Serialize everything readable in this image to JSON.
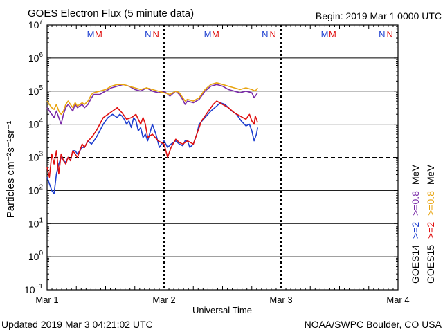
{
  "chart_data": {
    "type": "line",
    "title": "GOES Electron Flux (5 minute data)",
    "begin_label": "Begin: 2019 Mar 1 0000 UTC",
    "xlabel": "Universal Time",
    "ylabel": "Particles cm⁻²s⁻¹sr⁻¹",
    "footer_left": "Updated 2019 Mar  3 04:21:02 UTC",
    "footer_right": "NOAA/SWPC Boulder, CO USA",
    "x_unit": "days since 2019 Mar 1 0000 UTC",
    "x_range": [
      0,
      3
    ],
    "x_ticks": [
      {
        "value": 0,
        "label": "Mar 1"
      },
      {
        "value": 1,
        "label": "Mar 2"
      },
      {
        "value": 2,
        "label": "Mar 3"
      },
      {
        "value": 3,
        "label": "Mar 4"
      }
    ],
    "y_scale": "log",
    "y_range_exp": [
      -1,
      7
    ],
    "y_tick_exps": [
      -1,
      0,
      1,
      2,
      3,
      4,
      5,
      6,
      7
    ],
    "y_tick_base": "10",
    "threshold_exp": 3,
    "markers": {
      "day_offsets": [
        0.3,
        0.73
      ],
      "labels": [
        {
          "text": "M",
          "color": "#1e3fd0",
          "offset": 0.373
        },
        {
          "text": "M",
          "color": "#e01010",
          "offset": 0.44
        },
        {
          "text": "N",
          "color": "#1e3fd0",
          "offset": 0.863
        },
        {
          "text": "N",
          "color": "#e01010",
          "offset": 0.93
        }
      ]
    },
    "legend": [
      {
        "text": "GOES14",
        "color": "#000000"
      },
      {
        "text": ">=2",
        "color": "#1e3fd0"
      },
      {
        "text": ">=0.8",
        "color": "#7a2aa8"
      },
      {
        "text": "MeV",
        "color": "#000000"
      },
      {
        "text": "GOES15",
        "color": "#000000"
      },
      {
        "text": ">=2",
        "color": "#e01010"
      },
      {
        "text": ">=0.8",
        "color": "#e8a410"
      },
      {
        "text": "MeV",
        "color": "#000000"
      }
    ],
    "series": [
      {
        "name": "GOES14 >=2 MeV",
        "color": "#1e3fd0",
        "points": [
          [
            0.0,
            2.4
          ],
          [
            0.02,
            2.2
          ],
          [
            0.04,
            2.0
          ],
          [
            0.06,
            1.9
          ],
          [
            0.08,
            2.5
          ],
          [
            0.1,
            2.8
          ],
          [
            0.12,
            3.0
          ],
          [
            0.14,
            2.9
          ],
          [
            0.16,
            2.85
          ],
          [
            0.18,
            3.0
          ],
          [
            0.2,
            2.9
          ],
          [
            0.22,
            3.2
          ],
          [
            0.24,
            3.2
          ],
          [
            0.26,
            3.1
          ],
          [
            0.28,
            3.2
          ],
          [
            0.3,
            3.3
          ],
          [
            0.32,
            3.3
          ],
          [
            0.35,
            3.5
          ],
          [
            0.38,
            3.4
          ],
          [
            0.4,
            3.5
          ],
          [
            0.42,
            3.6
          ],
          [
            0.45,
            3.8
          ],
          [
            0.48,
            4.0
          ],
          [
            0.52,
            4.2
          ],
          [
            0.56,
            4.3
          ],
          [
            0.6,
            4.2
          ],
          [
            0.62,
            4.3
          ],
          [
            0.64,
            4.25
          ],
          [
            0.66,
            4.15
          ],
          [
            0.68,
            4.0
          ],
          [
            0.7,
            4.1
          ],
          [
            0.72,
            3.9
          ],
          [
            0.74,
            4.2
          ],
          [
            0.76,
            4.1
          ],
          [
            0.78,
            3.8
          ],
          [
            0.8,
            3.9
          ],
          [
            0.82,
            3.6
          ],
          [
            0.84,
            3.7
          ],
          [
            0.86,
            3.5
          ],
          [
            0.9,
            4.0
          ],
          [
            0.93,
            3.7
          ],
          [
            0.96,
            3.3
          ],
          [
            0.98,
            3.4
          ],
          [
            1.0,
            3.5
          ],
          [
            1.03,
            3.3
          ],
          [
            1.06,
            3.4
          ],
          [
            1.1,
            3.5
          ],
          [
            1.13,
            3.4
          ],
          [
            1.16,
            3.35
          ],
          [
            1.18,
            3.5
          ],
          [
            1.2,
            3.5
          ],
          [
            1.22,
            3.3
          ],
          [
            1.25,
            3.4
          ],
          [
            1.28,
            3.7
          ],
          [
            1.3,
            4.0
          ],
          [
            1.35,
            4.2
          ],
          [
            1.4,
            4.4
          ],
          [
            1.45,
            4.55
          ],
          [
            1.48,
            4.65
          ],
          [
            1.52,
            4.6
          ],
          [
            1.55,
            4.5
          ],
          [
            1.58,
            4.4
          ],
          [
            1.62,
            4.3
          ],
          [
            1.66,
            4.1
          ],
          [
            1.7,
            3.95
          ],
          [
            1.73,
            4.0
          ],
          [
            1.75,
            3.8
          ],
          [
            1.77,
            3.5
          ],
          [
            1.79,
            3.7
          ],
          [
            1.8,
            3.9
          ]
        ]
      },
      {
        "name": "GOES14 >=0.8 MeV",
        "color": "#7a2aa8",
        "points": [
          [
            0.0,
            4.5
          ],
          [
            0.02,
            4.4
          ],
          [
            0.04,
            4.3
          ],
          [
            0.06,
            4.2
          ],
          [
            0.08,
            4.4
          ],
          [
            0.1,
            4.2
          ],
          [
            0.12,
            4.0
          ],
          [
            0.14,
            4.3
          ],
          [
            0.16,
            4.5
          ],
          [
            0.18,
            4.6
          ],
          [
            0.2,
            4.5
          ],
          [
            0.22,
            4.4
          ],
          [
            0.24,
            4.6
          ],
          [
            0.26,
            4.5
          ],
          [
            0.28,
            4.55
          ],
          [
            0.3,
            4.6
          ],
          [
            0.32,
            4.5
          ],
          [
            0.35,
            4.6
          ],
          [
            0.38,
            4.8
          ],
          [
            0.4,
            4.9
          ],
          [
            0.45,
            4.9
          ],
          [
            0.5,
            5.0
          ],
          [
            0.55,
            5.1
          ],
          [
            0.6,
            5.15
          ],
          [
            0.65,
            5.2
          ],
          [
            0.7,
            5.15
          ],
          [
            0.75,
            5.05
          ],
          [
            0.8,
            5.0
          ],
          [
            0.85,
            5.1
          ],
          [
            0.9,
            5.0
          ],
          [
            0.95,
            4.95
          ],
          [
            1.0,
            5.0
          ],
          [
            1.05,
            4.85
          ],
          [
            1.1,
            5.0
          ],
          [
            1.13,
            4.9
          ],
          [
            1.15,
            4.8
          ],
          [
            1.18,
            4.6
          ],
          [
            1.2,
            4.7
          ],
          [
            1.25,
            4.65
          ],
          [
            1.3,
            4.75
          ],
          [
            1.35,
            5.0
          ],
          [
            1.4,
            5.15
          ],
          [
            1.45,
            5.2
          ],
          [
            1.5,
            5.15
          ],
          [
            1.55,
            5.05
          ],
          [
            1.6,
            5.0
          ],
          [
            1.65,
            4.95
          ],
          [
            1.7,
            5.0
          ],
          [
            1.75,
            4.95
          ],
          [
            1.77,
            4.8
          ],
          [
            1.8,
            4.95
          ]
        ]
      },
      {
        "name": "GOES15 >=2 MeV",
        "color": "#e01010",
        "points": [
          [
            0.0,
            2.7
          ],
          [
            0.02,
            2.4
          ],
          [
            0.04,
            3.1
          ],
          [
            0.06,
            2.8
          ],
          [
            0.08,
            3.2
          ],
          [
            0.1,
            2.5
          ],
          [
            0.12,
            3.1
          ],
          [
            0.14,
            2.9
          ],
          [
            0.16,
            2.8
          ],
          [
            0.18,
            3.0
          ],
          [
            0.2,
            2.9
          ],
          [
            0.22,
            3.2
          ],
          [
            0.24,
            3.1
          ],
          [
            0.26,
            3.0
          ],
          [
            0.28,
            3.2
          ],
          [
            0.3,
            3.4
          ],
          [
            0.32,
            3.3
          ],
          [
            0.35,
            3.5
          ],
          [
            0.38,
            3.6
          ],
          [
            0.42,
            3.8
          ],
          [
            0.45,
            4.0
          ],
          [
            0.48,
            4.2
          ],
          [
            0.52,
            4.3
          ],
          [
            0.56,
            4.4
          ],
          [
            0.6,
            4.5
          ],
          [
            0.64,
            4.35
          ],
          [
            0.68,
            4.15
          ],
          [
            0.72,
            4.2
          ],
          [
            0.76,
            4.3
          ],
          [
            0.8,
            4.0
          ],
          [
            0.82,
            4.2
          ],
          [
            0.84,
            4.0
          ],
          [
            0.86,
            3.6
          ],
          [
            0.9,
            3.7
          ],
          [
            0.95,
            3.5
          ],
          [
            1.0,
            3.4
          ],
          [
            1.03,
            3.0
          ],
          [
            1.06,
            3.3
          ],
          [
            1.1,
            3.55
          ],
          [
            1.13,
            3.45
          ],
          [
            1.16,
            3.4
          ],
          [
            1.2,
            3.5
          ],
          [
            1.25,
            3.4
          ],
          [
            1.28,
            3.7
          ],
          [
            1.32,
            4.1
          ],
          [
            1.38,
            4.4
          ],
          [
            1.42,
            4.6
          ],
          [
            1.45,
            4.7
          ],
          [
            1.5,
            4.6
          ],
          [
            1.55,
            4.5
          ],
          [
            1.6,
            4.35
          ],
          [
            1.65,
            4.25
          ],
          [
            1.7,
            4.15
          ],
          [
            1.73,
            4.3
          ],
          [
            1.75,
            4.1
          ],
          [
            1.77,
            4.0
          ],
          [
            1.78,
            4.25
          ],
          [
            1.8,
            4.05
          ]
        ]
      },
      {
        "name": "GOES15 >=0.8 MeV",
        "color": "#e8a410",
        "points": [
          [
            0.0,
            4.7
          ],
          [
            0.02,
            4.6
          ],
          [
            0.04,
            4.5
          ],
          [
            0.06,
            4.45
          ],
          [
            0.08,
            4.6
          ],
          [
            0.1,
            4.4
          ],
          [
            0.12,
            4.3
          ],
          [
            0.14,
            4.4
          ],
          [
            0.16,
            4.6
          ],
          [
            0.18,
            4.7
          ],
          [
            0.2,
            4.6
          ],
          [
            0.22,
            4.5
          ],
          [
            0.24,
            4.65
          ],
          [
            0.26,
            4.55
          ],
          [
            0.28,
            4.6
          ],
          [
            0.3,
            4.65
          ],
          [
            0.32,
            4.6
          ],
          [
            0.35,
            4.7
          ],
          [
            0.38,
            4.9
          ],
          [
            0.4,
            4.95
          ],
          [
            0.45,
            5.0
          ],
          [
            0.5,
            5.05
          ],
          [
            0.55,
            5.15
          ],
          [
            0.6,
            5.2
          ],
          [
            0.65,
            5.2
          ],
          [
            0.7,
            5.15
          ],
          [
            0.75,
            5.1
          ],
          [
            0.8,
            5.05
          ],
          [
            0.85,
            5.1
          ],
          [
            0.9,
            5.05
          ],
          [
            0.95,
            5.0
          ],
          [
            1.0,
            4.95
          ],
          [
            1.05,
            4.9
          ],
          [
            1.1,
            5.0
          ],
          [
            1.13,
            4.95
          ],
          [
            1.15,
            4.85
          ],
          [
            1.18,
            4.7
          ],
          [
            1.2,
            4.75
          ],
          [
            1.25,
            4.7
          ],
          [
            1.3,
            4.8
          ],
          [
            1.35,
            5.05
          ],
          [
            1.4,
            5.2
          ],
          [
            1.45,
            5.25
          ],
          [
            1.5,
            5.2
          ],
          [
            1.55,
            5.15
          ],
          [
            1.6,
            5.1
          ],
          [
            1.65,
            5.05
          ],
          [
            1.7,
            5.1
          ],
          [
            1.75,
            5.05
          ],
          [
            1.78,
            5.0
          ],
          [
            1.8,
            5.1
          ]
        ]
      }
    ]
  }
}
